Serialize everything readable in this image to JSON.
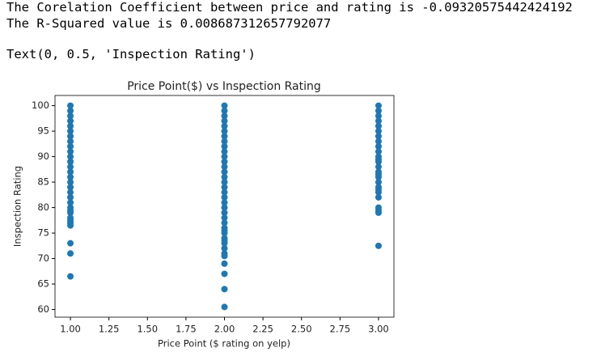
{
  "output": {
    "lines": [
      "The Corelation Coefficient between price and rating is -0.09320575442424192",
      "The R-Squared value is 0.008687312657792077",
      "Text(0, 0.5, 'Inspection Rating')"
    ]
  },
  "chart_data": {
    "type": "scatter",
    "title": "Price Point($) vs Inspection Rating",
    "x_label": "Price Point ($ rating on yelp)",
    "y_label": "Inspection Rating",
    "xlim": [
      0.9,
      3.1
    ],
    "ylim": [
      58.5,
      102
    ],
    "xticks": [
      {
        "value": 1,
        "label": "1.00"
      },
      {
        "value": 1.25,
        "label": "1.25"
      },
      {
        "value": 1.5,
        "label": "1.50"
      },
      {
        "value": 1.75,
        "label": "1.75"
      },
      {
        "value": 2,
        "label": "2.00"
      },
      {
        "value": 2.25,
        "label": "2.25"
      },
      {
        "value": 2.5,
        "label": "2.50"
      },
      {
        "value": 2.75,
        "label": "2.75"
      },
      {
        "value": 3,
        "label": "3.00"
      }
    ],
    "yticks": [
      60,
      65,
      70,
      75,
      80,
      85,
      90,
      95,
      100
    ],
    "series": [
      {
        "color": "#1f77b4",
        "x": [
          1,
          1,
          1,
          1,
          1,
          1,
          1,
          1,
          1,
          1,
          1,
          1,
          1,
          1,
          1,
          1,
          1,
          1,
          1,
          1,
          1,
          1,
          1,
          1,
          1,
          1,
          1,
          1,
          1,
          1,
          2,
          2,
          2,
          2,
          2,
          2,
          2,
          2,
          2,
          2,
          2,
          2,
          2,
          2,
          2,
          2,
          2,
          2,
          2,
          2,
          2,
          2,
          2,
          2,
          2,
          2,
          2,
          2,
          2,
          2,
          2,
          2,
          2,
          2,
          2,
          2,
          2,
          3,
          3,
          3,
          3,
          3,
          3,
          3,
          3,
          3,
          3,
          3,
          3,
          3,
          3,
          3,
          3,
          3,
          3,
          3,
          3,
          3,
          3,
          3,
          3,
          3,
          3
        ],
        "y": [
          100,
          99,
          98,
          97,
          96,
          95,
          94,
          93,
          92,
          91,
          90,
          89,
          88,
          87,
          86,
          85,
          84,
          83,
          82,
          81,
          80,
          79.5,
          79,
          78,
          77.5,
          77,
          76.5,
          73,
          71,
          66.5,
          100,
          99,
          98,
          97,
          96,
          95,
          94,
          93,
          92,
          91,
          90,
          89,
          88,
          87,
          86,
          85,
          84,
          83,
          82,
          81,
          80,
          79,
          78,
          77,
          76,
          75.5,
          75,
          74,
          73.5,
          73,
          72,
          71,
          70.5,
          69,
          67,
          64,
          60.5,
          100,
          99,
          98,
          97,
          96,
          95,
          94,
          93,
          92,
          91,
          90,
          89.5,
          89,
          88,
          87,
          86.5,
          86,
          85,
          84,
          83.5,
          83,
          82,
          80,
          79.5,
          79,
          72.5
        ]
      }
    ]
  }
}
